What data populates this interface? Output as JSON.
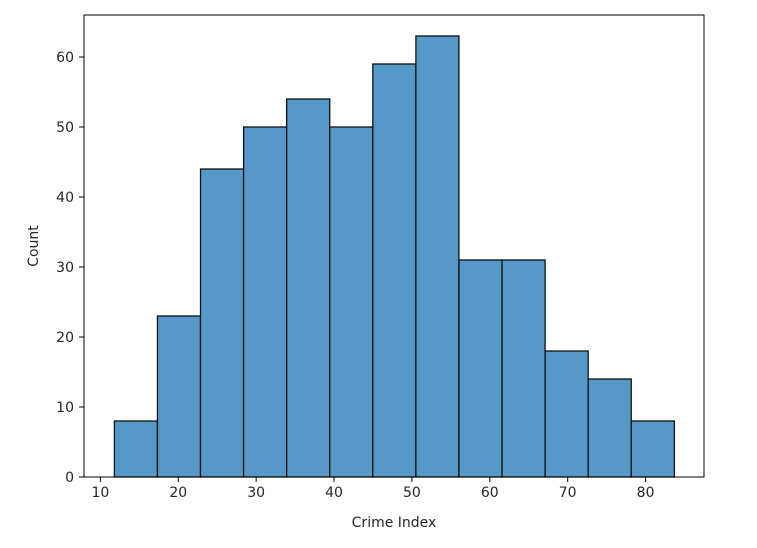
{
  "chart_data": {
    "type": "bar",
    "title": "",
    "xlabel": "Crime Index",
    "ylabel": "Count",
    "bin_edges": [
      11.8,
      17.33,
      22.86,
      28.39,
      33.92,
      39.45,
      44.98,
      50.51,
      56.04,
      61.57,
      67.1,
      72.63,
      78.16,
      83.7
    ],
    "values": [
      8,
      23,
      44,
      50,
      54,
      50,
      59,
      63,
      31,
      31,
      18,
      14,
      8
    ],
    "xlim": [
      7.9,
      87.5
    ],
    "ylim": [
      0,
      66
    ],
    "xticks": [
      10,
      20,
      30,
      40,
      50,
      60,
      70,
      80
    ],
    "yticks": [
      0,
      10,
      20,
      30,
      40,
      50,
      60
    ],
    "bar_color": "#5499c7",
    "edge_color": "#111111",
    "grid": false
  }
}
